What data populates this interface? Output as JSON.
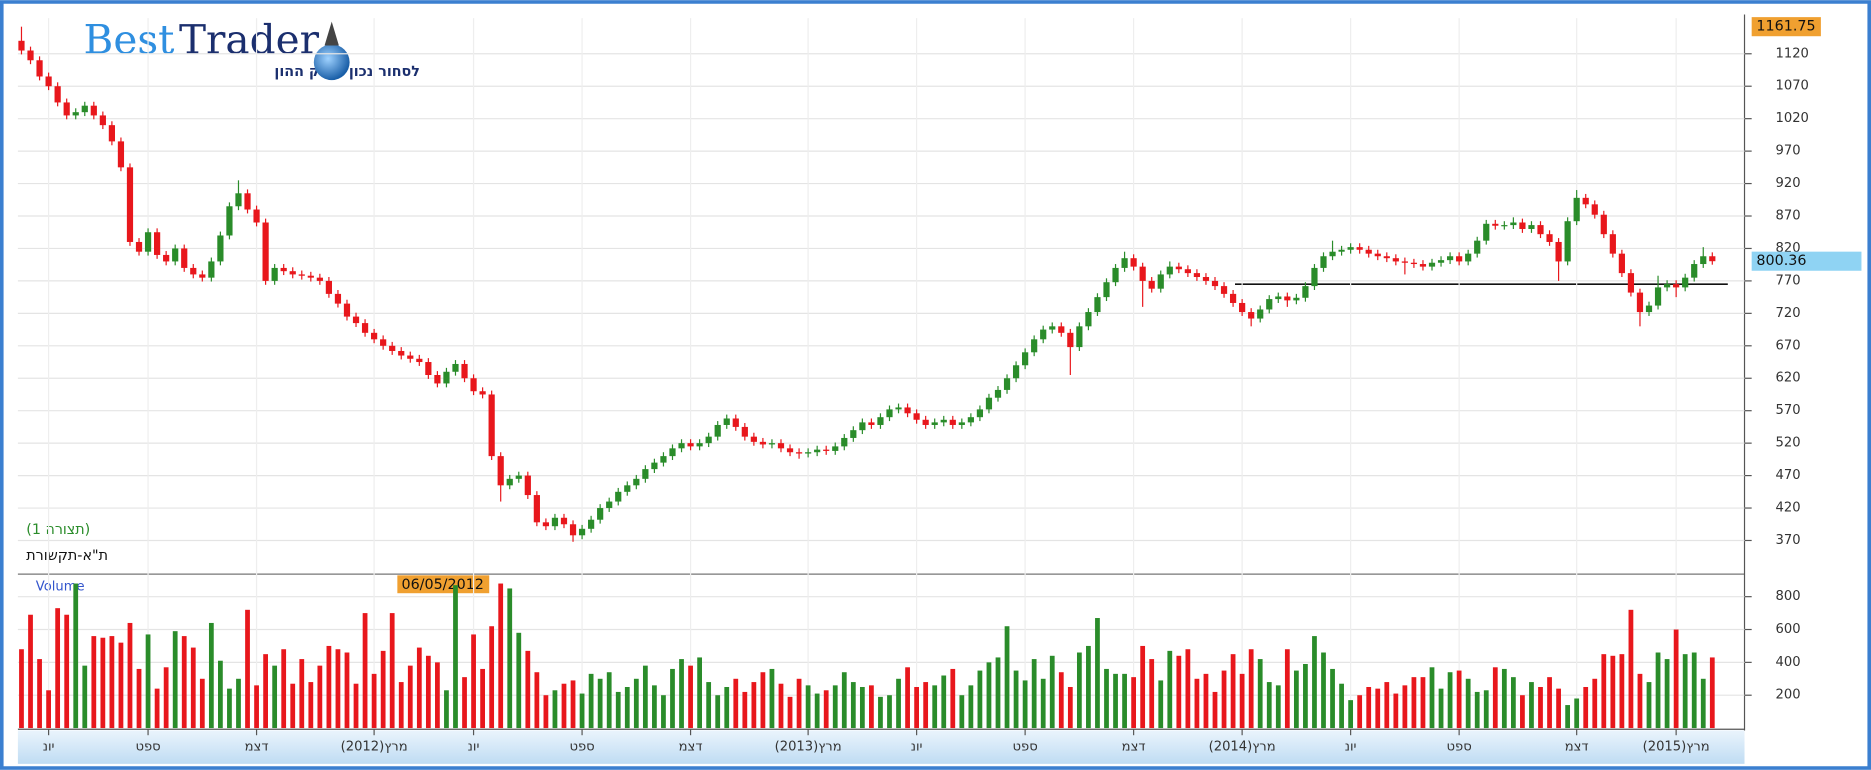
{
  "header": {
    "logo_best": "Best",
    "logo_trader": "Trader",
    "logo_tagline": "לסחור נכון בשוק ההון"
  },
  "chart_data": {
    "type": "candlestick",
    "title": "ת\"א-תקשורת",
    "subtitle": "(תצורה 1)",
    "categories": [
      null,
      null,
      null,
      "יונ",
      null,
      null,
      null,
      null,
      null,
      null,
      null,
      null,
      null,
      null,
      "ספט",
      null,
      null,
      null,
      null,
      null,
      null,
      null,
      null,
      null,
      null,
      null,
      "דצמ",
      null,
      null,
      null,
      null,
      null,
      null,
      null,
      null,
      null,
      null,
      null,
      null,
      "מרץ(2012)",
      null,
      null,
      null,
      null,
      null,
      null,
      null,
      null,
      null,
      null,
      "יונ",
      null,
      null,
      null,
      null,
      null,
      null,
      null,
      null,
      null,
      null,
      null,
      "ספט",
      null,
      null,
      null,
      null,
      null,
      null,
      null,
      null,
      null,
      null,
      null,
      "דצמ",
      null,
      null,
      null,
      null,
      null,
      null,
      null,
      null,
      null,
      null,
      null,
      null,
      "מרץ(2013)",
      null,
      null,
      null,
      null,
      null,
      null,
      null,
      null,
      null,
      null,
      null,
      "יונ",
      null,
      null,
      null,
      null,
      null,
      null,
      null,
      null,
      null,
      null,
      null,
      "ספט",
      null,
      null,
      null,
      null,
      null,
      null,
      null,
      null,
      null,
      null,
      null,
      "דצמ",
      null,
      null,
      null,
      null,
      null,
      null,
      null,
      null,
      null,
      null,
      null,
      "מרץ(2014)",
      null,
      null,
      null,
      null,
      null,
      null,
      null,
      null,
      null,
      null,
      null,
      "יונ",
      null,
      null,
      null,
      null,
      null,
      null,
      null,
      null,
      null,
      null,
      null,
      "ספט",
      null,
      null,
      null,
      null,
      null,
      null,
      null,
      null,
      null,
      null,
      null,
      null,
      "דצמ",
      null,
      null,
      null,
      null,
      null,
      null,
      null,
      null,
      null,
      null,
      "מרץ(2015)",
      null,
      null,
      null,
      null
    ],
    "open": [
      1140,
      1125,
      1110,
      1085,
      1070,
      1045,
      1025,
      1030,
      1040,
      1025,
      1010,
      985,
      945,
      830,
      815,
      845,
      810,
      800,
      820,
      790,
      780,
      775,
      800,
      840,
      885,
      905,
      880,
      860,
      770,
      790,
      785,
      780,
      778,
      775,
      770,
      750,
      735,
      715,
      705,
      690,
      680,
      670,
      662,
      655,
      650,
      645,
      625,
      612,
      630,
      642,
      620,
      600,
      595,
      500,
      455,
      465,
      470,
      440,
      398,
      392,
      405,
      395,
      378,
      388,
      402,
      420,
      430,
      445,
      455,
      465,
      480,
      490,
      500,
      512,
      520,
      515,
      520,
      530,
      548,
      558,
      545,
      530,
      522,
      518,
      520,
      512,
      506,
      504,
      506,
      510,
      508,
      515,
      528,
      540,
      552,
      548,
      560,
      572,
      575,
      566,
      556,
      548,
      552,
      556,
      548,
      552,
      560,
      572,
      590,
      602,
      620,
      640,
      660,
      680,
      695,
      700,
      690,
      668,
      700,
      722,
      745,
      768,
      790,
      805,
      792,
      770,
      758,
      780,
      792,
      788,
      782,
      776,
      770,
      762,
      750,
      736,
      722,
      712,
      726,
      742,
      746,
      740,
      744,
      762,
      790,
      808,
      815,
      818,
      822,
      818,
      812,
      808,
      805,
      800,
      798,
      796,
      792,
      798,
      802,
      808,
      800,
      812,
      832,
      858,
      855,
      856,
      860,
      850,
      856,
      842,
      830,
      800,
      862,
      898,
      888,
      872,
      842,
      812,
      782,
      752,
      722,
      732,
      760,
      765,
      760,
      775,
      796,
      808
    ],
    "high": [
      1161.75,
      1131,
      1116,
      1091,
      1076,
      1051,
      1036,
      1046,
      1046,
      1031,
      1016,
      991,
      951,
      836,
      851,
      851,
      816,
      826,
      826,
      796,
      786,
      806,
      846,
      891,
      925,
      911,
      886,
      866,
      796,
      796,
      791,
      786,
      784,
      781,
      776,
      756,
      741,
      721,
      711,
      696,
      686,
      676,
      668,
      661,
      656,
      651,
      631,
      636,
      648,
      648,
      626,
      606,
      601,
      506,
      471,
      476,
      476,
      446,
      404,
      411,
      411,
      401,
      394,
      408,
      426,
      436,
      451,
      461,
      471,
      486,
      496,
      506,
      518,
      526,
      526,
      526,
      536,
      554,
      564,
      564,
      551,
      536,
      528,
      526,
      526,
      518,
      512,
      512,
      516,
      516,
      521,
      534,
      546,
      558,
      558,
      566,
      578,
      581,
      581,
      572,
      562,
      558,
      562,
      562,
      558,
      566,
      578,
      596,
      608,
      626,
      646,
      666,
      686,
      701,
      706,
      706,
      696,
      706,
      728,
      751,
      774,
      796,
      815,
      811,
      798,
      776,
      786,
      800,
      798,
      794,
      788,
      782,
      776,
      768,
      756,
      742,
      728,
      732,
      748,
      752,
      752,
      750,
      768,
      796,
      814,
      832,
      824,
      828,
      828,
      824,
      818,
      814,
      811,
      806,
      804,
      802,
      804,
      808,
      814,
      814,
      818,
      838,
      864,
      864,
      862,
      868,
      866,
      862,
      862,
      848,
      836,
      868,
      910,
      904,
      894,
      878,
      848,
      818,
      788,
      758,
      738,
      778,
      771,
      771,
      781,
      802,
      822,
      814
    ],
    "low": [
      1119,
      1104,
      1079,
      1064,
      1039,
      1019,
      1019,
      1024,
      1019,
      1004,
      979,
      939,
      824,
      809,
      809,
      804,
      794,
      794,
      784,
      774,
      769,
      769,
      794,
      834,
      879,
      874,
      854,
      764,
      764,
      779,
      774,
      772,
      769,
      764,
      744,
      729,
      709,
      699,
      684,
      674,
      664,
      656,
      649,
      644,
      639,
      619,
      606,
      606,
      624,
      614,
      594,
      589,
      494,
      430,
      449,
      459,
      434,
      392,
      386,
      386,
      389,
      368,
      372,
      382,
      396,
      414,
      424,
      439,
      449,
      459,
      474,
      484,
      494,
      506,
      509,
      509,
      514,
      524,
      542,
      539,
      524,
      516,
      512,
      512,
      506,
      500,
      496,
      498,
      500,
      502,
      502,
      509,
      522,
      534,
      542,
      542,
      554,
      566,
      560,
      550,
      542,
      542,
      546,
      542,
      542,
      546,
      554,
      566,
      584,
      596,
      614,
      634,
      654,
      674,
      689,
      684,
      625,
      662,
      694,
      716,
      739,
      762,
      784,
      786,
      730,
      752,
      752,
      774,
      782,
      776,
      770,
      764,
      756,
      744,
      730,
      716,
      700,
      706,
      720,
      736,
      730,
      734,
      738,
      756,
      784,
      802,
      809,
      812,
      812,
      806,
      802,
      799,
      794,
      780,
      790,
      786,
      786,
      792,
      796,
      794,
      794,
      806,
      826,
      849,
      849,
      850,
      844,
      844,
      836,
      824,
      770,
      794,
      856,
      882,
      866,
      836,
      806,
      776,
      746,
      700,
      716,
      726,
      754,
      745,
      754,
      769,
      790,
      795
    ],
    "close": [
      1125,
      1110,
      1085,
      1070,
      1045,
      1025,
      1030,
      1040,
      1025,
      1010,
      985,
      945,
      830,
      815,
      845,
      810,
      800,
      820,
      790,
      780,
      775,
      800,
      840,
      885,
      905,
      880,
      860,
      770,
      790,
      785,
      780,
      778,
      775,
      770,
      750,
      735,
      715,
      705,
      690,
      680,
      670,
      662,
      655,
      650,
      645,
      625,
      612,
      630,
      642,
      620,
      600,
      595,
      500,
      455,
      465,
      470,
      440,
      398,
      392,
      405,
      395,
      378,
      388,
      402,
      420,
      430,
      445,
      455,
      465,
      480,
      490,
      500,
      512,
      520,
      515,
      520,
      530,
      548,
      558,
      545,
      530,
      522,
      518,
      520,
      512,
      506,
      504,
      506,
      510,
      508,
      515,
      528,
      540,
      552,
      548,
      560,
      572,
      575,
      566,
      556,
      548,
      552,
      556,
      548,
      552,
      560,
      572,
      590,
      602,
      620,
      640,
      660,
      680,
      695,
      700,
      690,
      668,
      700,
      722,
      745,
      768,
      790,
      805,
      792,
      770,
      758,
      780,
      792,
      788,
      782,
      776,
      770,
      762,
      750,
      736,
      722,
      712,
      726,
      742,
      746,
      740,
      744,
      762,
      790,
      808,
      815,
      818,
      822,
      818,
      812,
      808,
      805,
      800,
      798,
      796,
      792,
      798,
      802,
      808,
      800,
      812,
      832,
      858,
      855,
      856,
      860,
      850,
      856,
      842,
      830,
      800,
      862,
      898,
      888,
      872,
      842,
      812,
      782,
      752,
      722,
      732,
      760,
      765,
      760,
      775,
      796,
      808,
      800.36
    ],
    "up_color": "#2a8c2a",
    "down_color": "#e8171c",
    "ylim": [
      320,
      1175
    ],
    "yticks": [
      370,
      420,
      470,
      520,
      570,
      620,
      670,
      720,
      770,
      820,
      870,
      920,
      970,
      1020,
      1070,
      1120
    ],
    "grid": true,
    "max_label": 1161.75,
    "last_label": 800.36,
    "cursor_date": "06/05/2012",
    "volume": {
      "name": "Volume",
      "values": [
        480,
        690,
        420,
        230,
        730,
        690,
        880,
        380,
        560,
        550,
        560,
        520,
        640,
        360,
        570,
        240,
        370,
        590,
        560,
        490,
        300,
        640,
        410,
        240,
        300,
        720,
        260,
        450,
        380,
        480,
        270,
        420,
        280,
        380,
        500,
        480,
        460,
        270,
        700,
        330,
        470,
        700,
        280,
        380,
        490,
        440,
        400,
        230,
        870,
        310,
        570,
        360,
        620,
        880,
        850,
        580,
        470,
        340,
        200,
        230,
        270,
        290,
        210,
        330,
        300,
        340,
        220,
        250,
        300,
        380,
        260,
        200,
        360,
        420,
        380,
        430,
        280,
        200,
        250,
        300,
        220,
        280,
        340,
        360,
        270,
        190,
        300,
        260,
        210,
        230,
        260,
        340,
        280,
        250,
        260,
        190,
        200,
        300,
        370,
        250,
        280,
        260,
        320,
        360,
        200,
        260,
        350,
        400,
        430,
        620,
        350,
        290,
        420,
        300,
        440,
        340,
        250,
        460,
        500,
        670,
        360,
        330,
        330,
        310,
        500,
        420,
        290,
        470,
        440,
        480,
        300,
        330,
        220,
        350,
        450,
        330,
        480,
        420,
        280,
        260,
        480,
        350,
        390,
        560,
        460,
        360,
        270,
        170,
        200,
        250,
        240,
        280,
        210,
        260,
        310,
        310,
        370,
        240,
        340,
        350,
        300,
        220,
        230,
        370,
        360,
        310,
        200,
        280,
        250,
        310,
        240,
        140,
        180,
        250,
        300,
        450,
        440,
        450,
        720,
        330,
        280,
        460,
        420,
        600,
        450,
        460,
        300,
        430
      ],
      "ylim": [
        0,
        930
      ],
      "yticks": [
        200,
        400,
        600,
        800
      ]
    }
  }
}
